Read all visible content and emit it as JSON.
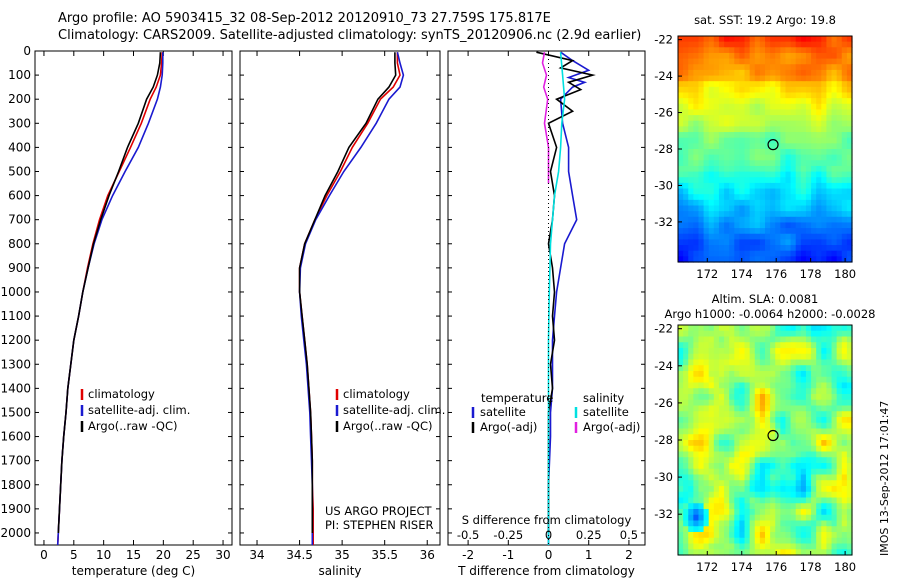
{
  "header": {
    "line1": "Argo profile: AO 5903415_32 08-Sep-2012 20120910_73 27.759S 175.817E",
    "line2": "Climatology: CARS2009. Satellite-adjusted climatology: synTS_20120906.nc (2.9d earlier)"
  },
  "side_stamp": "IMOS 13-Sep-2012 17:01:47",
  "colors": {
    "climatology": "#e00000",
    "satellite": "#1a1ad0",
    "argo": "#000000",
    "sal_satellite": "#00e0e0",
    "sal_argo": "#e020e0"
  },
  "chart_data": [
    {
      "type": "line",
      "name": "temperature-profile",
      "xlabel": "temperature (deg C)",
      "xlim": [
        -1.5,
        31.5
      ],
      "xticks": [
        0,
        5,
        10,
        15,
        20,
        25,
        30
      ],
      "ylim": [
        2050,
        0
      ],
      "yticks": [
        0,
        100,
        200,
        300,
        400,
        500,
        600,
        700,
        800,
        900,
        1000,
        1100,
        1200,
        1300,
        1400,
        1500,
        1600,
        1700,
        1800,
        1900,
        2000
      ],
      "legend": {
        "position": "center-right",
        "entries": [
          "climatology",
          "satellite-adj. clim.",
          "Argo(..raw -QC)"
        ]
      },
      "series": [
        {
          "name": "climatology",
          "color": "#e00000",
          "x": [
            19.8,
            19.7,
            19.5,
            18.8,
            17.8,
            16.3,
            14.5,
            12.6,
            10.7,
            9.3,
            8.2,
            7.3,
            6.5,
            5.8,
            5.0,
            4.5,
            4.0,
            3.7,
            3.3,
            3.0,
            2.8,
            2.6,
            2.5,
            2.4,
            2.3
          ],
          "y": [
            5,
            50,
            100,
            150,
            200,
            300,
            400,
            500,
            600,
            700,
            800,
            900,
            1000,
            1100,
            1200,
            1300,
            1400,
            1500,
            1600,
            1700,
            1800,
            1900,
            1950,
            2000,
            2050
          ]
        },
        {
          "name": "satellite-adj. clim.",
          "color": "#1a1ad0",
          "x": [
            19.9,
            19.9,
            19.8,
            19.5,
            19.0,
            17.5,
            15.8,
            13.6,
            11.5,
            9.7,
            8.4,
            7.4,
            6.5,
            5.8,
            5.0,
            4.5,
            4.0,
            3.7,
            3.3,
            3.0,
            2.8,
            2.6,
            2.5,
            2.4,
            2.3
          ],
          "y": [
            5,
            50,
            100,
            150,
            200,
            300,
            400,
            500,
            600,
            700,
            800,
            900,
            1000,
            1100,
            1200,
            1300,
            1400,
            1500,
            1600,
            1700,
            1800,
            1900,
            1950,
            2000,
            2050
          ]
        },
        {
          "name": "Argo(..raw -QC)",
          "color": "#000000",
          "x": [
            19.5,
            19.4,
            19.0,
            18.3,
            17.2,
            15.8,
            14.0,
            12.5,
            10.9,
            9.5,
            8.3,
            7.4,
            6.5,
            5.8,
            5.0,
            4.5,
            4.0,
            3.7,
            3.3,
            3.0,
            2.8,
            2.6,
            2.5,
            2.4
          ],
          "y": [
            5,
            50,
            100,
            150,
            200,
            300,
            400,
            500,
            600,
            700,
            800,
            900,
            1000,
            1100,
            1200,
            1300,
            1400,
            1500,
            1600,
            1700,
            1800,
            1900,
            1950,
            2000
          ]
        }
      ]
    },
    {
      "type": "line",
      "name": "salinity-profile",
      "xlabel": "salinity",
      "xlim": [
        33.8,
        36.15
      ],
      "xticks": [
        34,
        34.5,
        35,
        35.5,
        36
      ],
      "xticklabels": [
        "34",
        "34.5",
        "35",
        "35.5",
        "36"
      ],
      "ylim": [
        2050,
        0
      ],
      "legend": {
        "position": "center-right",
        "entries": [
          "climatology",
          "satellite-adj. clim.",
          "Argo(..raw -QC)"
        ]
      },
      "annotations": [
        "US ARGO PROJECT",
        "PI: STEPHEN RISER"
      ],
      "series": [
        {
          "name": "climatology",
          "color": "#e00000",
          "x": [
            35.65,
            35.65,
            35.68,
            35.6,
            35.45,
            35.3,
            35.12,
            34.98,
            34.82,
            34.68,
            34.56,
            34.5,
            34.5,
            34.53,
            34.56,
            34.59,
            34.61,
            34.63,
            34.64,
            34.65,
            34.65,
            34.66,
            34.66
          ],
          "y": [
            5,
            50,
            100,
            150,
            200,
            300,
            400,
            500,
            600,
            700,
            800,
            900,
            1000,
            1100,
            1200,
            1300,
            1400,
            1500,
            1600,
            1700,
            1800,
            1900,
            2050
          ]
        },
        {
          "name": "satellite-adj. clim.",
          "color": "#1a1ad0",
          "x": [
            35.65,
            35.68,
            35.72,
            35.68,
            35.55,
            35.4,
            35.22,
            35.02,
            34.85,
            34.69,
            34.57,
            34.51,
            34.5,
            34.52,
            34.55,
            34.58,
            34.6,
            34.62,
            34.63,
            34.64,
            34.65,
            34.65,
            34.65
          ],
          "y": [
            5,
            50,
            100,
            150,
            200,
            300,
            400,
            500,
            600,
            700,
            800,
            900,
            1000,
            1100,
            1200,
            1300,
            1400,
            1500,
            1600,
            1700,
            1800,
            1900,
            2050
          ]
        },
        {
          "name": "Argo(..raw -QC)",
          "color": "#000000",
          "x": [
            35.62,
            35.62,
            35.63,
            35.55,
            35.42,
            35.28,
            35.08,
            34.95,
            34.8,
            34.68,
            34.56,
            34.5,
            34.5,
            34.53,
            34.56,
            34.59,
            34.61,
            34.63,
            34.64,
            34.65,
            34.65,
            34.65
          ],
          "y": [
            5,
            50,
            100,
            150,
            200,
            300,
            400,
            500,
            600,
            700,
            800,
            900,
            1000,
            1100,
            1200,
            1300,
            1400,
            1500,
            1600,
            1700,
            1800,
            2000
          ]
        }
      ]
    },
    {
      "type": "line",
      "name": "difference-from-climatology",
      "xlabel": "T difference from climatology",
      "xlim": [
        -2.5,
        2.4
      ],
      "xticks": [
        -2,
        -1,
        0,
        1,
        2
      ],
      "top_xlabel": "S difference from climatology",
      "top_xticks": [
        -0.5,
        -0.25,
        0,
        0.25,
        0.5
      ],
      "top_xticklabels": [
        "-0.5",
        "-0.25",
        "0",
        "0.25",
        "0.5"
      ],
      "ylim": [
        2050,
        0
      ],
      "legend": {
        "position": "center-right",
        "group_titles": [
          "temperature",
          "salinity"
        ],
        "entries": [
          "satellite",
          "Argo(-adj)",
          "satellite",
          "Argo(-adj)"
        ]
      },
      "series": [
        {
          "name": "temperature satellite",
          "color": "#1a1ad0",
          "x": [
            0.3,
            0.6,
            1.0,
            0.5,
            0.9,
            0.6,
            0.3,
            0.35,
            0.5,
            0.5,
            0.6,
            0.7,
            0.4,
            0.3,
            0.2,
            0.15,
            0.1,
            0.1,
            0.1,
            0.05,
            0.05,
            0,
            0
          ],
          "y": [
            5,
            40,
            80,
            110,
            130,
            150,
            200,
            300,
            400,
            500,
            600,
            700,
            800,
            900,
            1000,
            1100,
            1200,
            1300,
            1400,
            1500,
            1600,
            1800,
            2050
          ]
        },
        {
          "name": "temperature Argo(-adj)",
          "color": "#000000",
          "x": [
            -0.3,
            0.6,
            0.3,
            1.1,
            0.5,
            0.8,
            0.2,
            0.6,
            0,
            0.2,
            0.05,
            0.15,
            0.1,
            0,
            0.1,
            0.15,
            0.1,
            0.15,
            0.05,
            0.1,
            0,
            0,
            0
          ],
          "y": [
            5,
            40,
            70,
            100,
            130,
            160,
            200,
            250,
            300,
            400,
            500,
            600,
            700,
            800,
            900,
            1000,
            1100,
            1200,
            1300,
            1400,
            1500,
            1700,
            2000
          ]
        },
        {
          "name": "salinity satellite",
          "color": "#00e0e0",
          "x": [
            0.3,
            0.35,
            0.4,
            0.33,
            0.3,
            0.25,
            0.15,
            0.1,
            0.05,
            0.02,
            0,
            0,
            0,
            0
          ],
          "y": [
            5,
            100,
            200,
            300,
            400,
            500,
            600,
            700,
            800,
            1000,
            1200,
            1500,
            1800,
            2050
          ]
        },
        {
          "name": "salinity Argo(-adj)",
          "color": "#e020e0",
          "x": [
            -0.1,
            -0.15,
            -0.05,
            -0.12,
            -0.02,
            -0.1,
            0,
            0,
            0
          ],
          "y": [
            5,
            50,
            100,
            150,
            200,
            300,
            400,
            500,
            550
          ]
        }
      ]
    },
    {
      "type": "heatmap",
      "name": "sst-map",
      "title": "sat. SST: 19.2  Argo: 19.8",
      "xticks": [
        172,
        174,
        176,
        178,
        180
      ],
      "yticks": [
        -22,
        -24,
        -26,
        -28,
        -30,
        -32
      ],
      "xlim": [
        170.3,
        180.4
      ],
      "ylim": [
        -34.2,
        -21.8
      ],
      "marker": {
        "lon": 175.817,
        "lat": -27.759
      }
    },
    {
      "type": "heatmap",
      "name": "sla-map",
      "title": "Altim. SLA: 0.0081",
      "subtitle": "Argo h1000: -0.0064 h2000: -0.0028",
      "xticks": [
        172,
        174,
        176,
        178,
        180
      ],
      "yticks": [
        -22,
        -24,
        -26,
        -28,
        -30,
        -32
      ],
      "xlim": [
        170.3,
        180.4
      ],
      "ylim": [
        -34.2,
        -21.8
      ],
      "marker": {
        "lon": 175.817,
        "lat": -27.759
      }
    }
  ]
}
